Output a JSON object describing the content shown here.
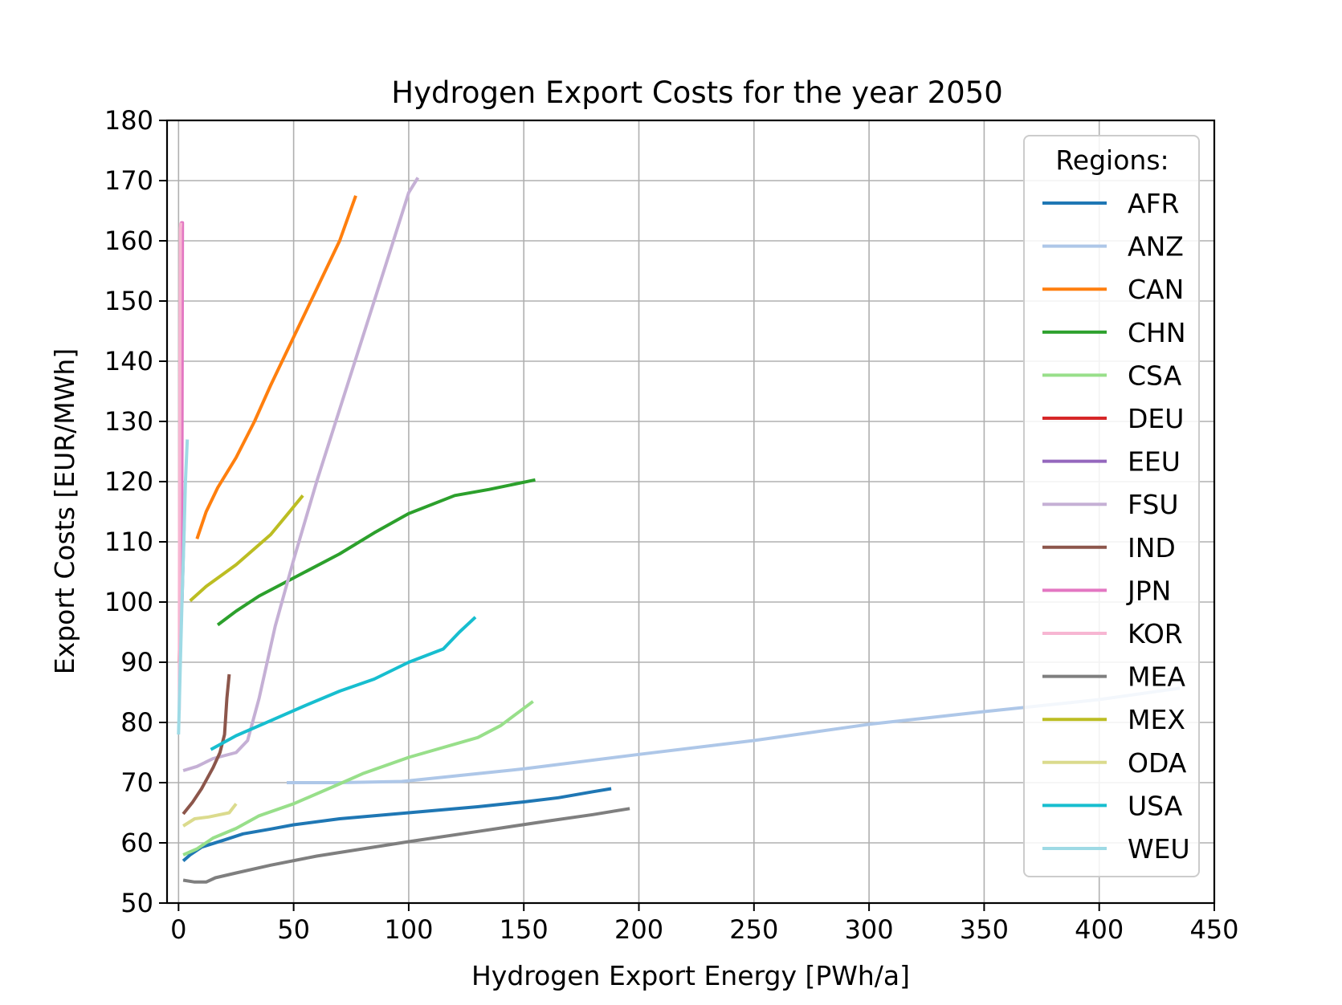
{
  "chart_data": {
    "type": "line",
    "title": "Hydrogen Export Costs for the year 2050",
    "xlabel": "Hydrogen Export Energy [PWh/a]",
    "ylabel": "Export Costs [EUR/MWh]",
    "xlim": [
      -5,
      450
    ],
    "ylim": [
      50,
      180
    ],
    "xticks": [
      0,
      50,
      100,
      150,
      200,
      250,
      300,
      350,
      400,
      450
    ],
    "yticks": [
      50,
      60,
      70,
      80,
      90,
      100,
      110,
      120,
      130,
      140,
      150,
      160,
      170,
      180
    ],
    "xtick_labels": [
      "0",
      "50",
      "100",
      "150",
      "200",
      "250",
      "300",
      "350",
      "400",
      "450"
    ],
    "ytick_labels": [
      "50",
      "60",
      "70",
      "80",
      "90",
      "100",
      "110",
      "120",
      "130",
      "140",
      "150",
      "160",
      "170",
      "180"
    ],
    "grid": true,
    "legend": {
      "title": "Regions:",
      "position": "right"
    },
    "series": [
      {
        "name": "AFR",
        "color": "#1f77b4",
        "points": [
          [
            2,
            57
          ],
          [
            5,
            58
          ],
          [
            10,
            59.3
          ],
          [
            20,
            60.5
          ],
          [
            28,
            61.5
          ],
          [
            40,
            62.3
          ],
          [
            50,
            63
          ],
          [
            70,
            64
          ],
          [
            100,
            65
          ],
          [
            130,
            66
          ],
          [
            150,
            66.8
          ],
          [
            165,
            67.5
          ],
          [
            180,
            68.5
          ],
          [
            188,
            69
          ]
        ]
      },
      {
        "name": "ANZ",
        "color": "#aec7e8",
        "points": [
          [
            47,
            70
          ],
          [
            70,
            70
          ],
          [
            97,
            70.2
          ],
          [
            130,
            71.5
          ],
          [
            150,
            72.3
          ],
          [
            200,
            74.7
          ],
          [
            250,
            77
          ],
          [
            300,
            79.7
          ],
          [
            350,
            81.8
          ],
          [
            400,
            83.8
          ],
          [
            435,
            85.7
          ]
        ]
      },
      {
        "name": "CAN",
        "color": "#ff7f0e",
        "points": [
          [
            8,
            110.5
          ],
          [
            12,
            115
          ],
          [
            17,
            119
          ],
          [
            25,
            124
          ],
          [
            33,
            130
          ],
          [
            40,
            136
          ],
          [
            50,
            144
          ],
          [
            60,
            152
          ],
          [
            70,
            160
          ],
          [
            77,
            167.5
          ]
        ]
      },
      {
        "name": "CHN",
        "color": "#2ca02c",
        "points": [
          [
            17,
            96.2
          ],
          [
            25,
            98.5
          ],
          [
            35,
            101
          ],
          [
            50,
            104
          ],
          [
            70,
            108
          ],
          [
            85,
            111.5
          ],
          [
            100,
            114.7
          ],
          [
            120,
            117.7
          ],
          [
            135,
            118.7
          ],
          [
            155,
            120.3
          ]
        ]
      },
      {
        "name": "CSA",
        "color": "#98df8a",
        "points": [
          [
            2,
            58
          ],
          [
            8,
            59
          ],
          [
            15,
            60.8
          ],
          [
            25,
            62.4
          ],
          [
            35,
            64.5
          ],
          [
            50,
            66.5
          ],
          [
            70,
            69.8
          ],
          [
            80,
            71.5
          ],
          [
            100,
            74.2
          ],
          [
            130,
            77.5
          ],
          [
            140,
            79.5
          ],
          [
            147,
            81.5
          ],
          [
            154,
            83.5
          ]
        ]
      },
      {
        "name": "DEU",
        "color": "#d62728",
        "points": [
          [
            0.3,
            90
          ],
          [
            0.8,
            100
          ]
        ]
      },
      {
        "name": "EEU",
        "color": "#9467bd",
        "points": [
          [
            1.5,
            100
          ],
          [
            2.5,
            114
          ]
        ]
      },
      {
        "name": "FSU",
        "color": "#c5b0d5",
        "points": [
          [
            2,
            72
          ],
          [
            8,
            72.7
          ],
          [
            15,
            74
          ],
          [
            25,
            75
          ],
          [
            30,
            77
          ],
          [
            35,
            84
          ],
          [
            42,
            96
          ],
          [
            50,
            107
          ],
          [
            60,
            120
          ],
          [
            70,
            132
          ],
          [
            80,
            144
          ],
          [
            90,
            156
          ],
          [
            100,
            168
          ],
          [
            104,
            170.5
          ]
        ]
      },
      {
        "name": "IND",
        "color": "#8c564b",
        "points": [
          [
            2,
            64.8
          ],
          [
            6,
            66.7
          ],
          [
            10,
            69
          ],
          [
            15,
            72.5
          ],
          [
            18,
            75
          ],
          [
            20,
            78
          ],
          [
            21,
            84
          ],
          [
            22,
            88
          ]
        ]
      },
      {
        "name": "JPN",
        "color": "#e377c2",
        "points": [
          [
            0.5,
            95
          ],
          [
            1,
            130
          ],
          [
            1.3,
            163
          ],
          [
            1.7,
            163
          ],
          [
            1.5,
            125
          ],
          [
            1.2,
            100
          ]
        ]
      },
      {
        "name": "KOR",
        "color": "#f7b6d2",
        "points": [
          [
            0.3,
            82
          ],
          [
            0.4,
            110
          ],
          [
            0.6,
            140
          ],
          [
            0.8,
            162
          ],
          [
            1,
            163
          ]
        ]
      },
      {
        "name": "MEA",
        "color": "#7f7f7f",
        "points": [
          [
            2,
            53.8
          ],
          [
            7,
            53.5
          ],
          [
            12,
            53.5
          ],
          [
            16,
            54.2
          ],
          [
            25,
            55
          ],
          [
            40,
            56.3
          ],
          [
            60,
            57.8
          ],
          [
            80,
            59
          ],
          [
            100,
            60.2
          ],
          [
            130,
            61.9
          ],
          [
            160,
            63.6
          ],
          [
            180,
            64.7
          ],
          [
            196,
            65.7
          ]
        ]
      },
      {
        "name": "MEX",
        "color": "#bcbd22",
        "points": [
          [
            5,
            100.2
          ],
          [
            12,
            102.6
          ],
          [
            25,
            106.2
          ],
          [
            40,
            111.2
          ],
          [
            48,
            114.9
          ],
          [
            54,
            117.7
          ]
        ]
      },
      {
        "name": "ODA",
        "color": "#dbdb8d",
        "points": [
          [
            2,
            62.8
          ],
          [
            7,
            64
          ],
          [
            13,
            64.3
          ],
          [
            22,
            65
          ],
          [
            25,
            66.5
          ]
        ]
      },
      {
        "name": "USA",
        "color": "#17becf",
        "points": [
          [
            14,
            75.5
          ],
          [
            25,
            77.8
          ],
          [
            40,
            80.3
          ],
          [
            55,
            82.8
          ],
          [
            70,
            85.2
          ],
          [
            85,
            87.2
          ],
          [
            100,
            90
          ],
          [
            115,
            92.2
          ],
          [
            122,
            95
          ],
          [
            129,
            97.5
          ]
        ]
      },
      {
        "name": "WEU",
        "color": "#9edae5",
        "points": [
          [
            0,
            78
          ],
          [
            0.8,
            90
          ],
          [
            1.5,
            100
          ],
          [
            2.3,
            110
          ],
          [
            3,
            120
          ],
          [
            3.8,
            127
          ]
        ]
      }
    ]
  }
}
